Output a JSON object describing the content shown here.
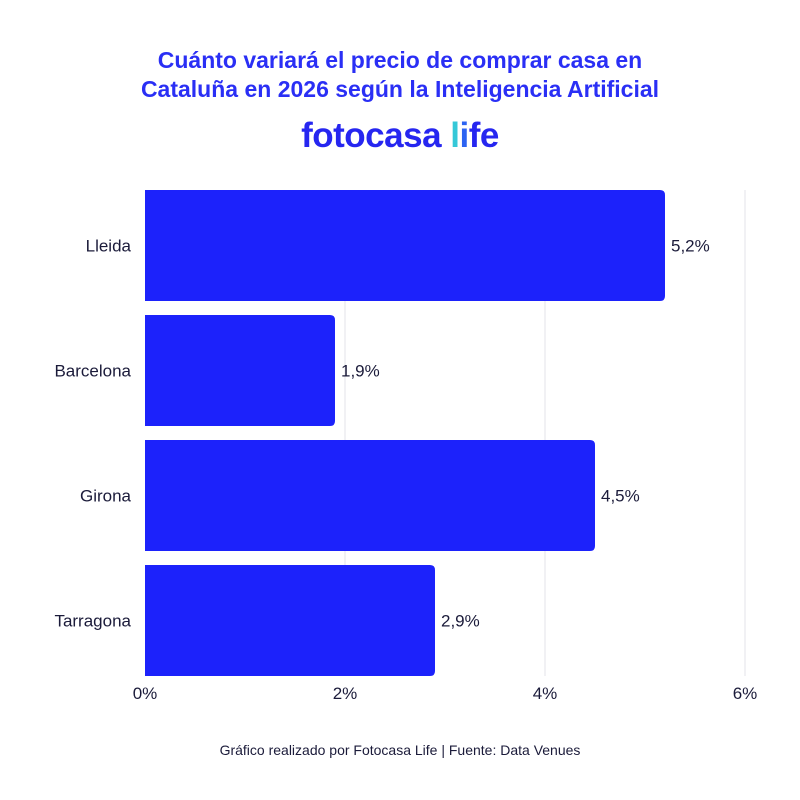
{
  "title_line1": "Cuánto variará el precio de comprar casa en",
  "title_line2": "Cataluña en 2026 según la Inteligencia Artificial",
  "logo": {
    "brand": "fotocasa",
    "life_l": "l",
    "life_i": "i",
    "life_rest": "fe"
  },
  "footer": "Gráfico realizado por Fotocasa Life | Fuente: Data Venues",
  "colors": {
    "bar": "#1c22fb",
    "title": "#2a2ff5",
    "grid": "#e3e3ea",
    "text": "#1b1b3a"
  },
  "chart_data": {
    "type": "bar",
    "orientation": "horizontal",
    "categories": [
      "Lleida",
      "Barcelona",
      "Girona",
      "Tarragona"
    ],
    "values": [
      5.2,
      1.9,
      4.5,
      2.9
    ],
    "data_labels": [
      "5,2%",
      "1,9%",
      "4,5%",
      "2,9%"
    ],
    "xticks": [
      0,
      2,
      4,
      6
    ],
    "xtick_labels": [
      "0%",
      "2%",
      "4%",
      "6%"
    ],
    "xlim": [
      0,
      6
    ],
    "grid": true
  }
}
